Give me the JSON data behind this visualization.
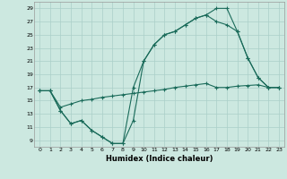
{
  "xlabel": "Humidex (Indice chaleur)",
  "xlim": [
    -0.5,
    23.5
  ],
  "ylim": [
    8,
    30
  ],
  "yticks": [
    9,
    11,
    13,
    15,
    17,
    19,
    21,
    23,
    25,
    27,
    29
  ],
  "xticks": [
    0,
    1,
    2,
    3,
    4,
    5,
    6,
    7,
    8,
    9,
    10,
    11,
    12,
    13,
    14,
    15,
    16,
    17,
    18,
    19,
    20,
    21,
    22,
    23
  ],
  "bg_color": "#cce8e0",
  "grid_color": "#aacfc8",
  "line_color": "#1a6b5a",
  "line1_x": [
    0,
    1,
    2,
    3,
    4,
    5,
    6,
    7,
    8,
    9,
    10,
    11,
    12,
    13,
    14,
    15,
    16,
    17,
    18,
    19,
    20,
    21,
    22,
    23
  ],
  "line1_y": [
    16.5,
    16.5,
    13.5,
    11.5,
    12.0,
    10.5,
    9.5,
    8.5,
    8.5,
    12.0,
    21.0,
    23.5,
    25.0,
    25.5,
    26.5,
    27.5,
    28.0,
    29.0,
    29.0,
    25.5,
    21.5,
    18.5,
    17.0,
    17.0
  ],
  "line2_x": [
    0,
    1,
    2,
    3,
    4,
    5,
    6,
    7,
    8,
    9,
    10,
    11,
    12,
    13,
    14,
    15,
    16,
    17,
    18,
    19,
    20,
    21,
    22,
    23
  ],
  "line2_y": [
    16.5,
    16.5,
    13.5,
    11.5,
    12.0,
    10.5,
    9.5,
    8.5,
    8.5,
    17.0,
    21.0,
    23.5,
    25.0,
    25.5,
    26.5,
    27.5,
    28.0,
    27.0,
    26.5,
    25.5,
    21.5,
    18.5,
    17.0,
    17.0
  ],
  "line3_x": [
    0,
    1,
    2,
    3,
    4,
    5,
    6,
    7,
    8,
    9,
    10,
    11,
    12,
    13,
    14,
    15,
    16,
    17,
    18,
    19,
    20,
    21,
    22,
    23
  ],
  "line3_y": [
    16.5,
    16.5,
    14.0,
    14.5,
    15.0,
    15.2,
    15.5,
    15.7,
    15.9,
    16.1,
    16.3,
    16.5,
    16.7,
    17.0,
    17.2,
    17.4,
    17.6,
    17.0,
    17.0,
    17.2,
    17.3,
    17.4,
    17.0,
    17.0
  ]
}
